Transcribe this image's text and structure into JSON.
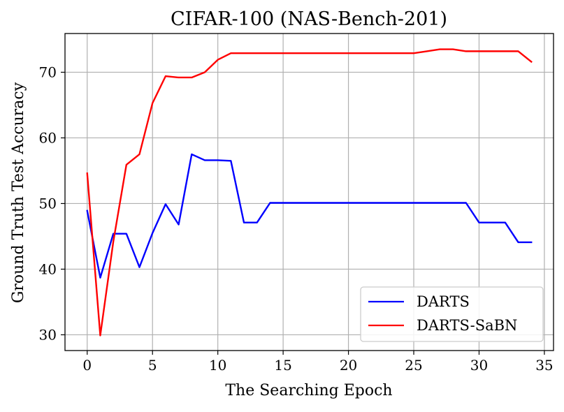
{
  "chart_data": {
    "type": "line",
    "title": "CIFAR-100 (NAS-Bench-201)",
    "xlabel": "The Searching Epoch",
    "ylabel": "Ground Truth Test Accuracy",
    "xlim": [
      -1.7,
      35.7
    ],
    "ylim": [
      27.6,
      75.9
    ],
    "xticks": [
      0,
      5,
      10,
      15,
      20,
      25,
      30,
      35
    ],
    "yticks": [
      30,
      40,
      50,
      60,
      70
    ],
    "grid": true,
    "legend_position": "lower-right",
    "x": [
      0,
      1,
      2,
      3,
      4,
      5,
      6,
      7,
      8,
      9,
      10,
      11,
      12,
      13,
      14,
      15,
      16,
      17,
      18,
      19,
      20,
      21,
      22,
      23,
      24,
      25,
      26,
      27,
      28,
      29,
      30,
      31,
      32,
      33,
      34
    ],
    "series": [
      {
        "name": "DARTS",
        "color": "#0000ff",
        "values": [
          48.9,
          38.7,
          45.4,
          45.4,
          40.3,
          45.5,
          49.9,
          46.8,
          57.5,
          56.6,
          56.6,
          56.5,
          47.1,
          47.1,
          50.1,
          50.1,
          50.1,
          50.1,
          50.1,
          50.1,
          50.1,
          50.1,
          50.1,
          50.1,
          50.1,
          50.1,
          50.1,
          50.1,
          50.1,
          50.1,
          47.1,
          47.1,
          47.1,
          44.1,
          44.1
        ]
      },
      {
        "name": "DARTS-SaBN",
        "color": "#ff0000",
        "values": [
          54.6,
          29.9,
          44.2,
          55.9,
          57.5,
          65.3,
          69.4,
          69.2,
          69.2,
          70.0,
          71.9,
          72.9,
          72.9,
          72.9,
          72.9,
          72.9,
          72.9,
          72.9,
          72.9,
          72.9,
          72.9,
          72.9,
          72.9,
          72.9,
          72.9,
          72.9,
          73.2,
          73.5,
          73.5,
          73.2,
          73.2,
          73.2,
          73.2,
          73.2,
          71.6
        ]
      }
    ]
  }
}
